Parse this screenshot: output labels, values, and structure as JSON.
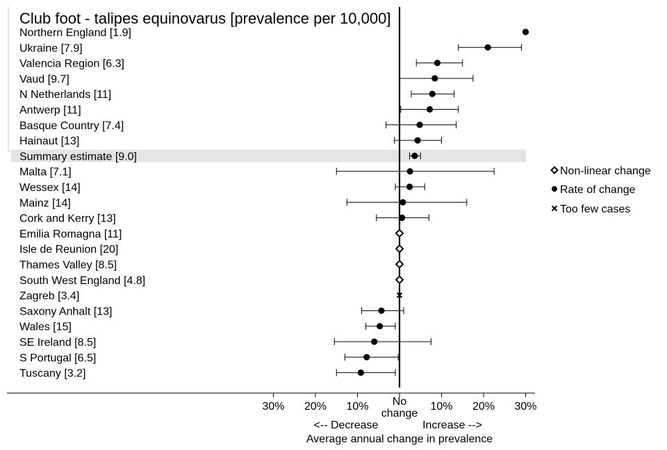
{
  "chart_data": {
    "type": "forest",
    "title": "Club foot - talipes equinovarus [prevalence per 10,000]",
    "xlabel": "Average annual change in prevalence",
    "x_direction_labels": {
      "decrease": "<-- Decrease",
      "increase": "Increase -->"
    },
    "x_center_label": [
      "No",
      "change"
    ],
    "x_tick_labels": [
      "30%",
      "20%",
      "10%",
      "No change",
      "10%",
      "20%",
      "30%"
    ],
    "xlim": [
      -30,
      30
    ],
    "summary_label": "Summary estimate [9.0]",
    "legend": {
      "position": "right",
      "items": [
        {
          "label": "Non-linear change",
          "marker": "diamond-open"
        },
        {
          "label": "Rate of change",
          "marker": "circle-filled"
        },
        {
          "label": "Too few cases",
          "marker": "cross"
        }
      ]
    },
    "rows": [
      {
        "label": "Northern England [1.9]",
        "type": "rate",
        "estimate": 30,
        "lower": null,
        "upper": null
      },
      {
        "label": "Ukraine [7.9]",
        "type": "rate",
        "estimate": 21,
        "lower": 14,
        "upper": 29
      },
      {
        "label": "Valencia Region [6.3]",
        "type": "rate",
        "estimate": 9,
        "lower": 4,
        "upper": 15
      },
      {
        "label": "Vaud [9.7]",
        "type": "rate",
        "estimate": 8.4,
        "lower": 0,
        "upper": 17.5
      },
      {
        "label": "N Netherlands [11]",
        "type": "rate",
        "estimate": 7.8,
        "lower": 2.8,
        "upper": 13
      },
      {
        "label": "Antwerp [11]",
        "type": "rate",
        "estimate": 7.2,
        "lower": 0.3,
        "upper": 14
      },
      {
        "label": "Basque Country [7.4]",
        "type": "rate",
        "estimate": 4.8,
        "lower": -3.2,
        "upper": 13.5
      },
      {
        "label": "Hainaut [13]",
        "type": "rate",
        "estimate": 4.3,
        "lower": -1.2,
        "upper": 10
      },
      {
        "label": "Summary estimate [9.0]",
        "type": "summary",
        "estimate": 3.6,
        "lower": 2.4,
        "upper": 5
      },
      {
        "label": "Malta [7.1]",
        "type": "rate",
        "estimate": 2.5,
        "lower": -15,
        "upper": 22.5
      },
      {
        "label": "Wessex [14]",
        "type": "rate",
        "estimate": 2.4,
        "lower": -1,
        "upper": 6
      },
      {
        "label": "Mainz [14]",
        "type": "rate",
        "estimate": 0.8,
        "lower": -12.5,
        "upper": 16
      },
      {
        "label": "Cork and Kerry [13]",
        "type": "rate",
        "estimate": 0.6,
        "lower": -5.5,
        "upper": 7
      },
      {
        "label": "Emilia Romagna [11]",
        "type": "nonlinear",
        "estimate": 0,
        "lower": null,
        "upper": null
      },
      {
        "label": "Isle de Reunion [20]",
        "type": "nonlinear",
        "estimate": 0,
        "lower": null,
        "upper": null
      },
      {
        "label": "Thames Valley [8.5]",
        "type": "nonlinear",
        "estimate": 0,
        "lower": null,
        "upper": null
      },
      {
        "label": "South West England [4.8]",
        "type": "nonlinear",
        "estimate": 0,
        "lower": null,
        "upper": null
      },
      {
        "label": "Zagreb [3.4]",
        "type": "fewcases",
        "estimate": 0,
        "lower": null,
        "upper": null
      },
      {
        "label": "Saxony Anhalt [13]",
        "type": "rate",
        "estimate": -4.3,
        "lower": -9,
        "upper": 1
      },
      {
        "label": "Wales [15]",
        "type": "rate",
        "estimate": -4.7,
        "lower": -8,
        "upper": -1
      },
      {
        "label": "SE Ireland [8.5]",
        "type": "rate",
        "estimate": -6,
        "lower": -15.5,
        "upper": 7.5
      },
      {
        "label": "S Portugal [6.5]",
        "type": "rate",
        "estimate": -7.8,
        "lower": -13,
        "upper": -0.3
      },
      {
        "label": "Tuscany [3.2]",
        "type": "rate",
        "estimate": -9.2,
        "lower": -15,
        "upper": -1
      }
    ]
  },
  "colors": {
    "foreground": "#000000",
    "summary_band": "#e4e4e4",
    "label_frame": "#c8c8c8",
    "background": "#ffffff"
  }
}
